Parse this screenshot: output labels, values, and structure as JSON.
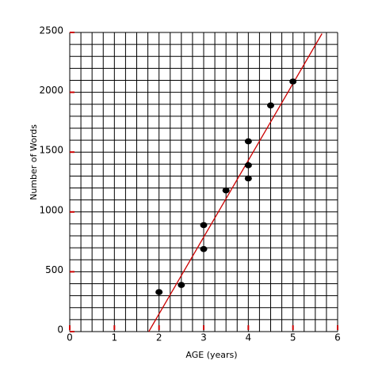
{
  "chart_data": {
    "type": "scatter",
    "x_label": "AGE (years)",
    "y_label": "Number of Words",
    "series": [
      {
        "color": "#000000",
        "x": [
          2,
          2.5,
          3,
          3,
          3.5,
          4,
          4,
          4,
          4.5,
          5
        ],
        "values": [
          330,
          390,
          890,
          690,
          1180,
          1590,
          1390,
          1280,
          1890,
          2090
        ]
      }
    ],
    "trend_line": {
      "color": "#cc0000",
      "x": [
        1.77,
        5.65
      ],
      "values": [
        0,
        2490
      ]
    },
    "xlim": [
      0,
      6
    ],
    "xticks": [
      0,
      1,
      2,
      3,
      4,
      5,
      6
    ],
    "ylim": [
      0,
      2500
    ],
    "yticks": [
      0,
      500,
      1000,
      1500,
      2000,
      2500
    ],
    "tick_color": "#cc0000",
    "grid": {
      "x_step": 0.25,
      "y_step": 100
    }
  }
}
